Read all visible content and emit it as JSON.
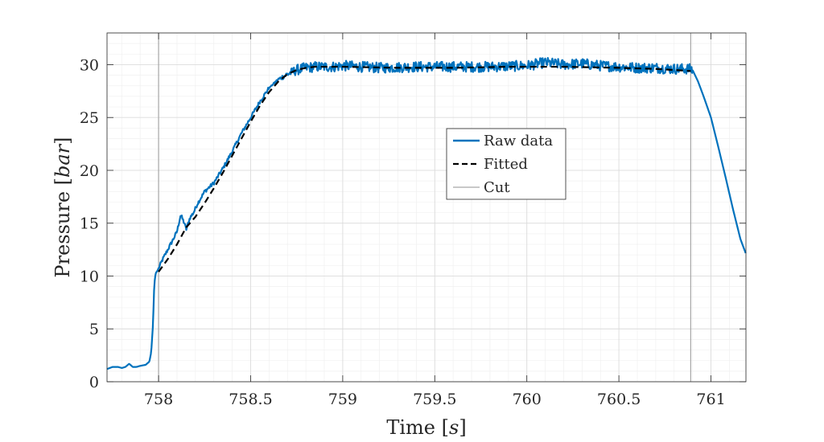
{
  "chart_data": {
    "type": "line",
    "xlabel": "Time",
    "xunit": "s",
    "ylabel": "Pressure",
    "yunit": "bar",
    "xlim": [
      757.72,
      761.19
    ],
    "ylim": [
      0,
      33
    ],
    "xticks": [
      758,
      758.5,
      759,
      759.5,
      760,
      760.5,
      761
    ],
    "xtick_labels": [
      "758",
      "758.5",
      "759",
      "759.5",
      "760",
      "760.5",
      "761"
    ],
    "yticks": [
      0,
      5,
      10,
      15,
      20,
      25,
      30
    ],
    "ytick_labels": [
      "0",
      "5",
      "10",
      "15",
      "20",
      "25",
      "30"
    ],
    "grid": true,
    "minor_grid": true,
    "legend_position": "center-right",
    "cut_lines": [
      758.0,
      760.89
    ],
    "series": [
      {
        "name": "Raw data",
        "color": "#0072BD",
        "style": "solid",
        "x": [
          757.72,
          757.75,
          757.78,
          757.8,
          757.82,
          757.84,
          757.86,
          757.88,
          757.9,
          757.93,
          757.95,
          757.96,
          757.97,
          757.975,
          757.98,
          757.985,
          757.99,
          758.0,
          758.02,
          758.05,
          758.08,
          758.1,
          758.12,
          758.14,
          758.15,
          758.17,
          758.19,
          758.21,
          758.25,
          758.3,
          758.35,
          758.4,
          758.45,
          758.5,
          758.55,
          758.6,
          758.65,
          758.7,
          758.75,
          758.8,
          758.85,
          758.9,
          758.95,
          759.0,
          759.2,
          759.4,
          759.6,
          759.8,
          760.0,
          760.1,
          760.2,
          760.3,
          760.4,
          760.5,
          760.6,
          760.7,
          760.8,
          760.85,
          760.88,
          760.9,
          760.93,
          760.96,
          761.0,
          761.04,
          761.08,
          761.12,
          761.16,
          761.19
        ],
        "y": [
          1.2,
          1.4,
          1.4,
          1.3,
          1.4,
          1.7,
          1.4,
          1.4,
          1.5,
          1.6,
          1.9,
          2.8,
          5.5,
          8.5,
          9.8,
          10.3,
          10.4,
          10.7,
          11.5,
          12.5,
          13.5,
          14.2,
          15.8,
          15.0,
          14.4,
          15.5,
          16.0,
          16.8,
          18.0,
          18.8,
          20.2,
          21.8,
          23.5,
          25.0,
          26.5,
          27.8,
          28.6,
          29.1,
          29.5,
          29.7,
          29.8,
          29.8,
          29.8,
          29.9,
          29.7,
          29.8,
          29.8,
          29.8,
          29.9,
          30.2,
          30.0,
          30.1,
          29.9,
          29.8,
          29.7,
          29.7,
          29.6,
          29.6,
          29.6,
          29.5,
          28.4,
          27.0,
          25.0,
          22.2,
          19.3,
          16.3,
          13.5,
          12.1
        ],
        "noise_range_x": [
          758.6,
          760.9
        ],
        "noise_amplitude": 0.5
      },
      {
        "name": "Fitted",
        "color": "#000000",
        "style": "dashed",
        "x": [
          758.0,
          758.05,
          758.1,
          758.15,
          758.2,
          758.25,
          758.3,
          758.35,
          758.4,
          758.45,
          758.5,
          758.55,
          758.6,
          758.65,
          758.7,
          758.75,
          758.8,
          758.85,
          758.9,
          759.0,
          759.3,
          759.6,
          759.9,
          760.2,
          760.5,
          760.7,
          760.89
        ],
        "y": [
          10.4,
          11.6,
          13.0,
          14.6,
          15.6,
          16.9,
          18.3,
          19.8,
          21.4,
          23.0,
          24.6,
          26.1,
          27.4,
          28.4,
          29.1,
          29.5,
          29.7,
          29.8,
          29.8,
          29.8,
          29.7,
          29.7,
          29.8,
          29.8,
          29.7,
          29.6,
          29.4
        ]
      },
      {
        "name": "Cut",
        "color": "#a6a6a6",
        "style": "solid"
      }
    ]
  }
}
